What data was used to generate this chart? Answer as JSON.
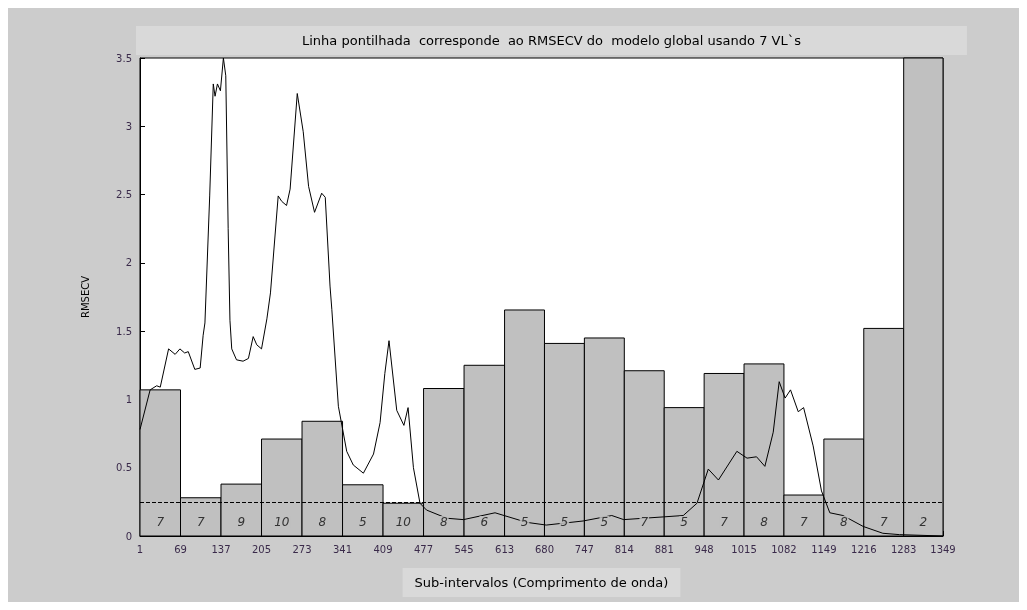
{
  "chart_data": {
    "type": "histogram",
    "title": "Linha pontilhada  corresponde  ao RMSECV do  modelo global usando 7 VL`s",
    "xlabel": "Sub-intervalos (Comprimento de onda)",
    "ylabel": "RMSECV",
    "bins": [
      1,
      69,
      137,
      205,
      273,
      341,
      409,
      477,
      545,
      613,
      680,
      747,
      814,
      881,
      948,
      1015,
      1082,
      1149,
      1216,
      1283,
      1349
    ],
    "series": [
      {
        "color": "#c0c0c0",
        "values": [
          1.07,
          0.28,
          0.38,
          0.71,
          0.84,
          0.375,
          0.24,
          1.08,
          1.25,
          1.655,
          1.41,
          1.45,
          1.21,
          0.94,
          1.19,
          1.26,
          0.3,
          0.71,
          1.52,
          3.5
        ]
      },
      {
        "type": "line",
        "color": "#000000",
        "x": [
          1,
          18,
          29,
          35,
          49,
          60,
          68,
          76,
          82,
          93,
          102,
          107,
          110,
          118,
          124,
          127,
          131,
          136,
          141,
          145,
          149,
          152,
          155,
          163,
          174,
          183,
          191,
          197,
          205,
          214,
          220,
          233,
          239,
          247,
          253,
          265,
          275,
          284,
          294,
          306,
          312,
          320,
          323,
          334,
          348,
          359,
          376,
          393,
          404,
          412,
          419,
          432,
          444,
          451,
          460,
          471,
          482,
          516,
          544,
          597,
          650,
          683,
          745,
          793,
          813,
          880,
          913,
          936,
          955,
          972,
          1003,
          1020,
          1036,
          1050,
          1064,
          1074,
          1084,
          1093,
          1106,
          1115,
          1131,
          1145,
          1159,
          1181,
          1215,
          1248,
          1276,
          1349
        ],
        "values": [
          0.78,
          1.07,
          1.1,
          1.09,
          1.37,
          1.33,
          1.37,
          1.34,
          1.35,
          1.22,
          1.23,
          1.47,
          1.56,
          2.49,
          3.31,
          3.22,
          3.31,
          3.26,
          3.5,
          3.37,
          2.25,
          1.58,
          1.37,
          1.29,
          1.28,
          1.3,
          1.46,
          1.4,
          1.37,
          1.59,
          1.78,
          2.49,
          2.45,
          2.42,
          2.54,
          3.24,
          2.96,
          2.56,
          2.37,
          2.51,
          2.48,
          1.83,
          1.66,
          0.95,
          0.62,
          0.52,
          0.46,
          0.6,
          0.83,
          1.19,
          1.43,
          0.92,
          0.81,
          0.94,
          0.5,
          0.24,
          0.19,
          0.13,
          0.12,
          0.17,
          0.1,
          0.08,
          0.11,
          0.15,
          0.12,
          0.14,
          0.15,
          0.24,
          0.49,
          0.41,
          0.62,
          0.57,
          0.58,
          0.51,
          0.76,
          1.13,
          1.01,
          1.07,
          0.91,
          0.94,
          0.66,
          0.33,
          0.17,
          0.15,
          0.07,
          0.02,
          0.01,
          0.0
        ]
      }
    ],
    "ref_lines": [
      {
        "axis": "y",
        "value": 0.25,
        "color": "#000000",
        "line_style": "dashed"
      }
    ],
    "annotations": [
      "7",
      "7",
      "9",
      "10",
      "8",
      "5",
      "10",
      "8",
      "6",
      "5",
      "5",
      "5",
      "7",
      "5",
      "7",
      "8",
      "7",
      "8",
      "7",
      "2"
    ],
    "xlim": [
      1,
      1349
    ],
    "xticks": [
      1,
      69,
      137,
      205,
      273,
      341,
      409,
      477,
      545,
      613,
      680,
      747,
      814,
      881,
      948,
      1015,
      1082,
      1149,
      1216,
      1283,
      1349
    ],
    "ylim": [
      0,
      3.5
    ],
    "yticks": [
      0,
      0.5,
      1,
      1.5,
      2,
      2.5,
      3,
      3.5
    ],
    "grid": false,
    "marker": "none",
    "line_style": "solid"
  }
}
